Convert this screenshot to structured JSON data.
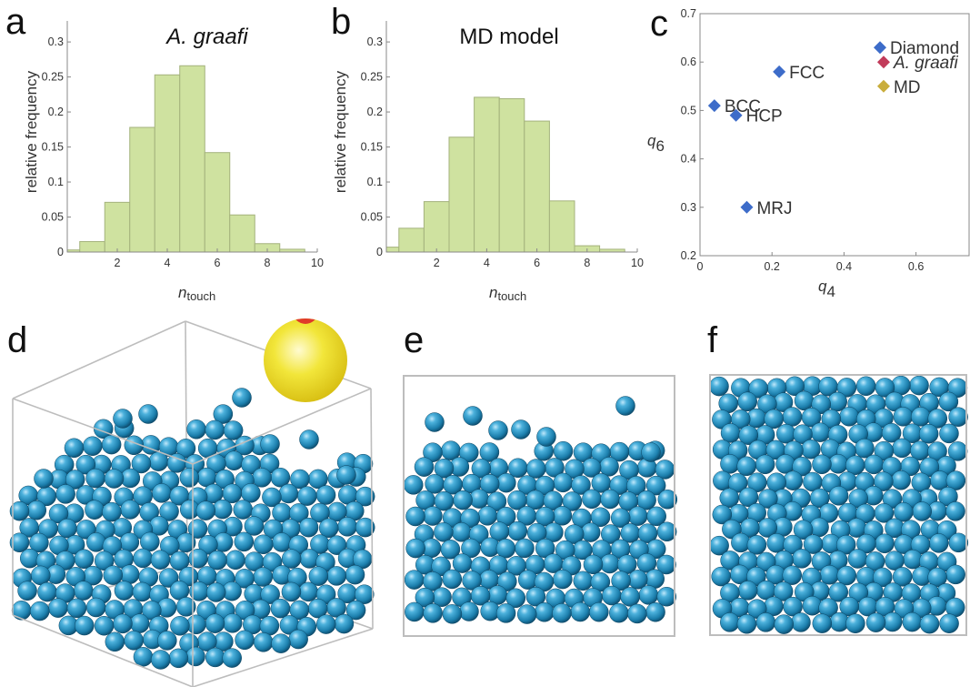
{
  "panels": {
    "a": "a",
    "b": "b",
    "c": "c",
    "d": "d",
    "e": "e",
    "f": "f"
  },
  "colors": {
    "bar_fill": "#cfe2a0",
    "bar_stroke": "#a4b27c",
    "sphere_blue": "#2e8fbf",
    "box_line": "#bdbdbd",
    "point_blue": "#3d6cc9",
    "point_red": "#c23b5a",
    "point_gold": "#c9ad3c",
    "inset_yellow": "#f0e230",
    "inset_red": "#e03b2a"
  },
  "chart_data": [
    {
      "type": "bar",
      "title": "A. graafi",
      "title_italic": true,
      "xlabel_main": "n",
      "xlabel_sub": "touch",
      "ylabel": "relative frequency",
      "xlim": [
        0,
        10
      ],
      "ylim": [
        0,
        0.33
      ],
      "xticks": [
        "2",
        "4",
        "6",
        "8",
        "10"
      ],
      "yticks": [
        "0",
        "0.05",
        "0.1",
        "0.15",
        "0.2",
        "0.25",
        "0.3"
      ],
      "bin_centers": [
        0,
        1,
        2,
        3,
        4,
        5,
        6,
        7,
        8,
        9
      ],
      "values": [
        0.003,
        0.015,
        0.071,
        0.178,
        0.253,
        0.266,
        0.142,
        0.053,
        0.012,
        0.004
      ]
    },
    {
      "type": "bar",
      "title": "MD model",
      "title_italic": false,
      "xlabel_main": "n",
      "xlabel_sub": "touch",
      "ylabel": "relative frequency",
      "xlim": [
        0,
        10
      ],
      "ylim": [
        0,
        0.33
      ],
      "xticks": [
        "2",
        "4",
        "6",
        "8",
        "10"
      ],
      "yticks": [
        "0",
        "0.05",
        "0.1",
        "0.15",
        "0.2",
        "0.25",
        "0.3"
      ],
      "bin_centers": [
        0,
        1,
        2,
        3,
        4,
        5,
        6,
        7,
        8,
        9
      ],
      "values": [
        0.007,
        0.034,
        0.072,
        0.164,
        0.221,
        0.219,
        0.187,
        0.073,
        0.009,
        0.004
      ]
    },
    {
      "type": "scatter",
      "xlabel_main": "q",
      "xlabel_sub": "4",
      "ylabel_main": "q",
      "ylabel_sub": "6",
      "xlim": [
        0,
        0.75
      ],
      "ylim": [
        0.2,
        0.7
      ],
      "xticks": [
        "0",
        "0.2",
        "0.4",
        "0.6"
      ],
      "yticks": [
        "0.2",
        "0.3",
        "0.4",
        "0.5",
        "0.6",
        "0.7"
      ],
      "points": [
        {
          "label": "Diamond",
          "x": 0.5,
          "y": 0.63,
          "color": "#3d6cc9",
          "italic": false
        },
        {
          "label": "A. graafi",
          "x": 0.51,
          "y": 0.6,
          "color": "#c23b5a",
          "italic": true
        },
        {
          "label": "MD",
          "x": 0.51,
          "y": 0.55,
          "color": "#c9ad3c",
          "italic": false
        },
        {
          "label": "FCC",
          "x": 0.22,
          "y": 0.58,
          "color": "#3d6cc9",
          "italic": false
        },
        {
          "label": "BCC",
          "x": 0.04,
          "y": 0.51,
          "color": "#3d6cc9",
          "italic": false
        },
        {
          "label": "HCP",
          "x": 0.1,
          "y": 0.49,
          "color": "#3d6cc9",
          "italic": false
        },
        {
          "label": "MRJ",
          "x": 0.13,
          "y": 0.3,
          "color": "#3d6cc9",
          "italic": false
        }
      ]
    }
  ]
}
